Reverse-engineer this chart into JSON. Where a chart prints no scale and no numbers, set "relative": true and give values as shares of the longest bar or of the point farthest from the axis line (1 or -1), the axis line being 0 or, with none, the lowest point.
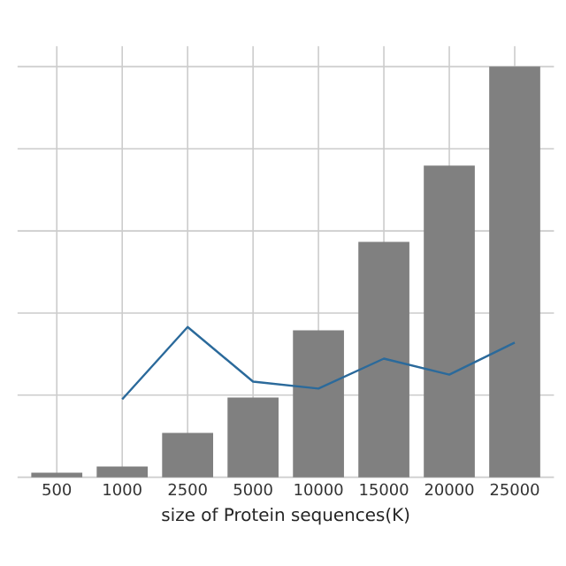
{
  "chart_data": {
    "type": "bar",
    "relative": true,
    "xlabel": "size of Protein sequences(K)",
    "categories": [
      "500",
      "1000",
      "2500",
      "5000",
      "10000",
      "15000",
      "20000",
      "25000"
    ],
    "series": [
      {
        "color": "#808080",
        "values": [
          0.011,
          0.026,
          0.108,
          0.194,
          0.358,
          0.573,
          0.759,
          1
        ]
      },
      {
        "type": "line",
        "color": "#2b6a9b",
        "values": [
          null,
          0.19,
          0.366,
          0.233,
          0.216,
          0.289,
          0.25,
          0.328
        ]
      }
    ],
    "grid": true
  }
}
